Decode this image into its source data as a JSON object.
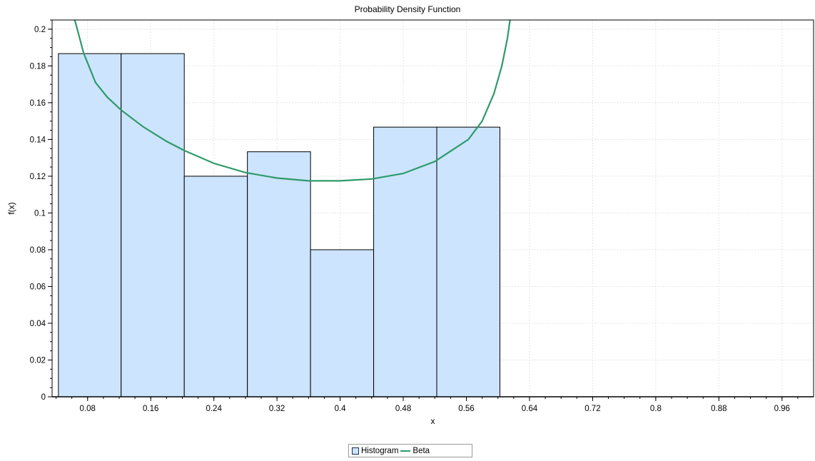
{
  "chart_data": {
    "type": "bar",
    "title": "Probability Density Function",
    "xlabel": "x",
    "ylabel": "f(x)",
    "xlim": [
      0.035,
      1.0
    ],
    "ylim": [
      0,
      0.205
    ],
    "x_ticks": [
      0.08,
      0.16,
      0.24,
      0.32,
      0.4,
      0.48,
      0.56,
      0.64,
      0.72,
      0.8,
      0.88,
      0.96
    ],
    "y_ticks": [
      0,
      0.02,
      0.04,
      0.06,
      0.08,
      0.1,
      0.12,
      0.14,
      0.16,
      0.18,
      0.2
    ],
    "grid": true,
    "legend_position": "bottom-center",
    "series": [
      {
        "name": "Histogram",
        "kind": "histogram",
        "color": "#cce4fd",
        "edge_color": "#000000",
        "bins": [
          {
            "x0": 0.043,
            "x1": 0.1225,
            "value": 0.1867
          },
          {
            "x0": 0.1225,
            "x1": 0.2025,
            "value": 0.1867
          },
          {
            "x0": 0.2025,
            "x1": 0.2825,
            "value": 0.12
          },
          {
            "x0": 0.2825,
            "x1": 0.3625,
            "value": 0.1333
          },
          {
            "x0": 0.3625,
            "x1": 0.4425,
            "value": 0.08
          },
          {
            "x0": 0.4425,
            "x1": 0.5225,
            "value": 0.1467
          },
          {
            "x0": 0.5225,
            "x1": 0.6025,
            "value": 0.1467
          }
        ]
      },
      {
        "name": "Beta",
        "kind": "line",
        "color": "#2e9a6a",
        "x": [
          0.06,
          0.065,
          0.075,
          0.09,
          0.105,
          0.1225,
          0.15,
          0.18,
          0.2025,
          0.24,
          0.28,
          0.32,
          0.36,
          0.4,
          0.44,
          0.48,
          0.52,
          0.5625,
          0.58,
          0.595,
          0.605,
          0.612,
          0.617
        ],
        "y": [
          0.21,
          0.203,
          0.187,
          0.171,
          0.163,
          0.156,
          0.147,
          0.139,
          0.134,
          0.127,
          0.122,
          0.119,
          0.1175,
          0.1175,
          0.1185,
          0.1215,
          0.128,
          0.14,
          0.15,
          0.165,
          0.18,
          0.195,
          0.21
        ]
      }
    ]
  },
  "legend": {
    "histogram_label": "Histogram",
    "beta_label": "Beta"
  }
}
